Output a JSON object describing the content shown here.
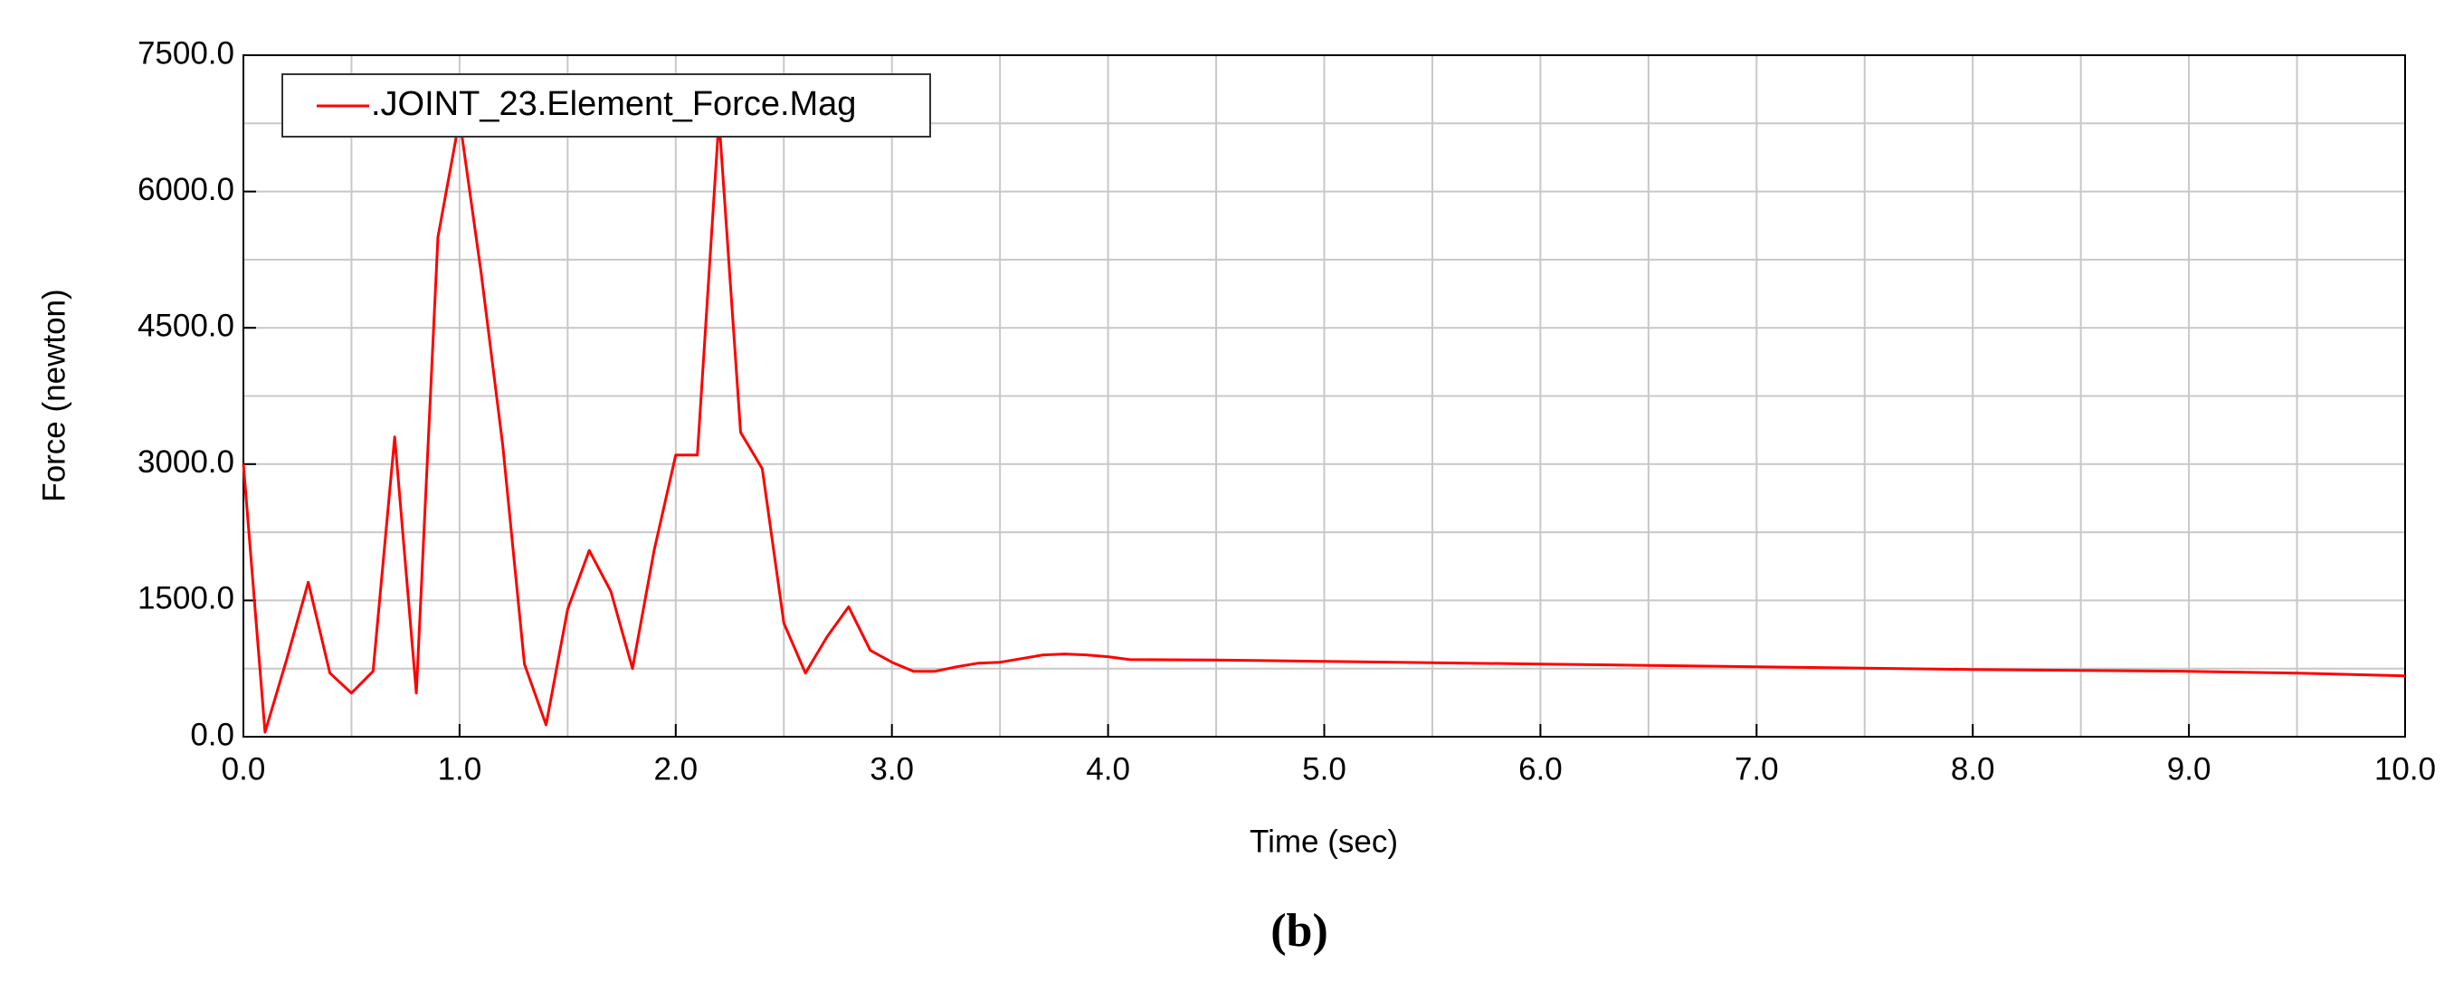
{
  "chart_data": {
    "type": "line",
    "xlabel": "Time (sec)",
    "ylabel": "Force (newton)",
    "x": [
      0.0,
      0.1,
      0.2,
      0.3,
      0.4,
      0.5,
      0.6,
      0.7,
      0.8,
      0.9,
      1.0,
      1.1,
      1.2,
      1.3,
      1.4,
      1.5,
      1.6,
      1.7,
      1.8,
      1.9,
      2.0,
      2.1,
      2.2,
      2.3,
      2.4,
      2.5,
      2.6,
      2.7,
      2.8,
      2.9,
      3.0,
      3.1,
      3.2,
      3.3,
      3.4,
      3.5,
      3.6,
      3.7,
      3.8,
      3.9,
      4.0,
      4.1,
      4.5,
      5.0,
      5.5,
      6.0,
      6.5,
      7.0,
      7.5,
      8.0,
      8.5,
      9.0,
      9.5,
      10.0
    ],
    "series": [
      {
        "name": ".JOINT_23.Element_Force.Mag",
        "color": "#ff0000",
        "values": [
          3000,
          50,
          850,
          1700,
          700,
          480,
          720,
          3300,
          480,
          5500,
          6800,
          5100,
          3200,
          800,
          130,
          1400,
          2050,
          1600,
          750,
          2050,
          3100,
          3100,
          6800,
          3350,
          2950,
          1250,
          700,
          1100,
          1430,
          950,
          820,
          720,
          720,
          770,
          810,
          820,
          860,
          900,
          910,
          900,
          880,
          850,
          845,
          830,
          815,
          800,
          785,
          770,
          755,
          740,
          730,
          720,
          700,
          670
        ]
      }
    ],
    "xlim": [
      0,
      10
    ],
    "ylim": [
      0,
      7500
    ],
    "xticks": [
      {
        "value": 0,
        "label": "0.0"
      },
      {
        "value": 1,
        "label": "1.0"
      },
      {
        "value": 2,
        "label": "2.0"
      },
      {
        "value": 3,
        "label": "3.0"
      },
      {
        "value": 4,
        "label": "4.0"
      },
      {
        "value": 5,
        "label": "5.0"
      },
      {
        "value": 6,
        "label": "6.0"
      },
      {
        "value": 7,
        "label": "7.0"
      },
      {
        "value": 8,
        "label": "8.0"
      },
      {
        "value": 9,
        "label": "9.0"
      },
      {
        "value": 10,
        "label": "10.0"
      }
    ],
    "yticks": [
      {
        "value": 0,
        "label": "0.0"
      },
      {
        "value": 1500,
        "label": "1500.0"
      },
      {
        "value": 3000,
        "label": "3000.0"
      },
      {
        "value": 4500,
        "label": "4500.0"
      },
      {
        "value": 6000,
        "label": "6000.0"
      },
      {
        "value": 7500,
        "label": "7500.0"
      }
    ],
    "xminor": [
      0.5,
      1.5,
      2.5,
      3.5,
      4.5,
      5.5,
      6.5,
      7.5,
      8.5,
      9.5
    ],
    "yminor": [
      750,
      2250,
      3750,
      5250,
      6750
    ],
    "grid": true,
    "legend": "upper left"
  },
  "caption": "(b)"
}
